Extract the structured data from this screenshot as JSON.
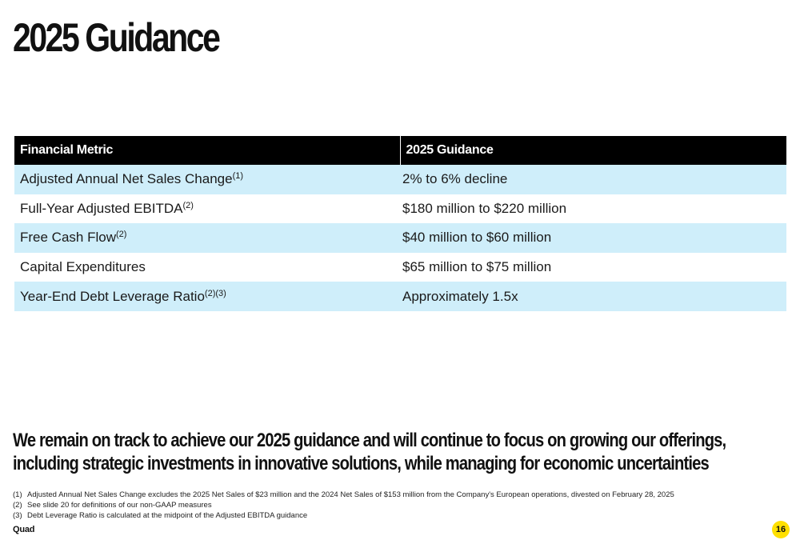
{
  "title": "2025 Guidance",
  "table": {
    "headers": [
      "Financial Metric",
      "2025 Guidance"
    ],
    "rows": [
      {
        "metric": "Adjusted Annual Net Sales Change",
        "notes": "(1)",
        "guidance": "2% to 6% decline"
      },
      {
        "metric": "Full-Year Adjusted EBITDA",
        "notes": "(2)",
        "guidance": "$180 million to $220 million"
      },
      {
        "metric": "Free Cash Flow",
        "notes": "(2)",
        "guidance": "$40 million to $60 million"
      },
      {
        "metric": "Capital Expenditures",
        "notes": "",
        "guidance": "$65 million to $75 million"
      },
      {
        "metric": "Year-End Debt Leverage Ratio",
        "notes": "(2)(3)",
        "guidance": "Approximately 1.5x"
      }
    ]
  },
  "statement": {
    "line1": "We remain on track to achieve our 2025 guidance and will continue to focus on growing our offerings,",
    "line2": "including strategic investments in innovative solutions, while managing for economic uncertainties"
  },
  "footnotes": [
    {
      "num": "(1)",
      "text": "Adjusted Annual Net Sales Change excludes the 2025 Net Sales of $23 million and the 2024 Net Sales of $153 million from the Company's European operations, divested on February 28, 2025"
    },
    {
      "num": "(2)",
      "text": "See slide 20 for definitions of our non-GAAP measures"
    },
    {
      "num": "(3)",
      "text": "Debt Leverage Ratio is calculated at the midpoint of the Adjusted EBITDA guidance"
    }
  ],
  "brand": "Quad",
  "page_number": "16",
  "colors": {
    "header_bg": "#000000",
    "row_shade": "#cfeefa",
    "page_badge": "#ffe000"
  }
}
